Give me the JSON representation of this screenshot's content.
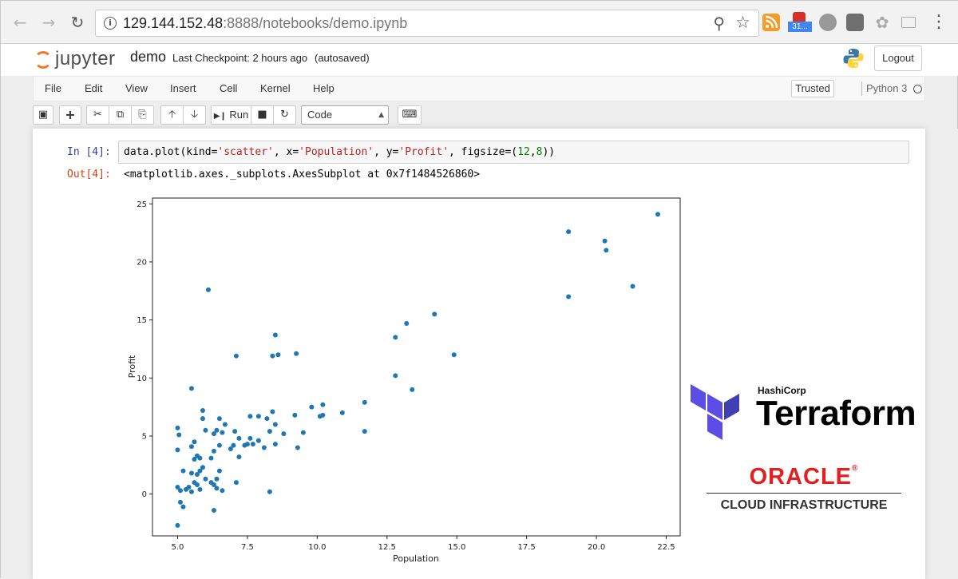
{
  "browser": {
    "url_host": "129.144.152.48",
    "url_rest": ":8888/notebooks/demo.ipynb",
    "extension_badge": "31..."
  },
  "jupyter": {
    "logo_text": "jupyter",
    "notebook_name": "demo",
    "checkpoint": "Last Checkpoint: 2 hours ago",
    "autosave": "(autosaved)",
    "logout_label": "Logout"
  },
  "menu": {
    "items": [
      "File",
      "Edit",
      "View",
      "Insert",
      "Cell",
      "Kernel",
      "Help"
    ],
    "trusted_label": "Trusted",
    "kernel_name": "Python 3"
  },
  "toolbar": {
    "run_label": "Run",
    "cell_type": "Code"
  },
  "cell": {
    "in_prompt": "In [4]:",
    "code_prefix": "data.plot(kind=",
    "code_s1": "'scatter'",
    "code_mid1": ", x=",
    "code_s2": "'Population'",
    "code_mid2": ", y=",
    "code_s3": "'Profit'",
    "code_mid3": ", figsize=(",
    "code_n1": "12",
    "code_comma": ",",
    "code_n2": "8",
    "code_end": "))",
    "out_prompt": "Out[4]:",
    "out_text": "<matplotlib.axes._subplots.AxesSubplot at 0x7f1484526860>"
  },
  "chart_data": {
    "type": "scatter",
    "xlabel": "Population",
    "ylabel": "Profit",
    "xlim": [
      4.1,
      23.0
    ],
    "ylim": [
      -3.6,
      25.5
    ],
    "xticks": [
      5.0,
      7.5,
      10.0,
      12.5,
      15.0,
      17.5,
      20.0,
      22.5
    ],
    "xtick_labels": [
      "5.0",
      "7.5",
      "10.0",
      "12.5",
      "15.0",
      "17.5",
      "20.0",
      "22.5"
    ],
    "yticks": [
      0,
      5,
      10,
      15,
      20,
      25
    ],
    "ytick_labels": [
      "0",
      "5",
      "10",
      "15",
      "20",
      "25"
    ],
    "color": "#1f77b4",
    "points": [
      [
        5.0,
        -2.7
      ],
      [
        5.1,
        -0.7
      ],
      [
        5.2,
        -1.1
      ],
      [
        5.1,
        0.3
      ],
      [
        5.0,
        0.6
      ],
      [
        5.2,
        2.0
      ],
      [
        5.0,
        3.8
      ],
      [
        5.05,
        5.1
      ],
      [
        5.0,
        5.7
      ],
      [
        5.3,
        0.4
      ],
      [
        5.4,
        0.6
      ],
      [
        5.5,
        0.2
      ],
      [
        5.6,
        1.0
      ],
      [
        5.7,
        0.8
      ],
      [
        5.8,
        0.4
      ],
      [
        5.5,
        1.8
      ],
      [
        5.7,
        1.7
      ],
      [
        5.8,
        2.0
      ],
      [
        5.9,
        2.3
      ],
      [
        5.6,
        3.0
      ],
      [
        5.7,
        3.3
      ],
      [
        5.8,
        3.1
      ],
      [
        5.5,
        4.1
      ],
      [
        5.6,
        4.5
      ],
      [
        5.5,
        9.1
      ],
      [
        5.9,
        6.5
      ],
      [
        5.9,
        7.2
      ],
      [
        6.0,
        5.5
      ],
      [
        6.1,
        17.6
      ],
      [
        6.0,
        1.3
      ],
      [
        6.2,
        1.0
      ],
      [
        6.3,
        0.8
      ],
      [
        6.4,
        0.5
      ],
      [
        6.3,
        -1.4
      ],
      [
        6.4,
        1.3
      ],
      [
        6.6,
        0.3
      ],
      [
        6.5,
        2.0
      ],
      [
        6.2,
        3.1
      ],
      [
        6.3,
        3.7
      ],
      [
        6.5,
        4.2
      ],
      [
        6.3,
        5.2
      ],
      [
        6.4,
        5.5
      ],
      [
        6.6,
        5.3
      ],
      [
        6.5,
        6.5
      ],
      [
        6.7,
        6.0
      ],
      [
        6.9,
        3.9
      ],
      [
        7.0,
        4.2
      ],
      [
        7.05,
        5.4
      ],
      [
        7.2,
        4.8
      ],
      [
        7.1,
        1.0
      ],
      [
        7.1,
        11.9
      ],
      [
        7.2,
        3.2
      ],
      [
        7.4,
        4.2
      ],
      [
        7.5,
        4.3
      ],
      [
        7.6,
        4.8
      ],
      [
        7.7,
        4.3
      ],
      [
        7.6,
        6.7
      ],
      [
        7.9,
        6.7
      ],
      [
        7.9,
        4.6
      ],
      [
        8.1,
        4.0
      ],
      [
        8.2,
        6.5
      ],
      [
        8.3,
        5.4
      ],
      [
        8.3,
        0.2
      ],
      [
        8.4,
        7.1
      ],
      [
        8.5,
        6.0
      ],
      [
        8.4,
        11.9
      ],
      [
        8.5,
        13.7
      ],
      [
        8.6,
        12.0
      ],
      [
        8.5,
        4.3
      ],
      [
        8.8,
        5.2
      ],
      [
        9.2,
        6.8
      ],
      [
        9.3,
        4.0
      ],
      [
        9.25,
        12.1
      ],
      [
        9.5,
        5.3
      ],
      [
        9.8,
        7.5
      ],
      [
        10.1,
        6.7
      ],
      [
        10.2,
        6.8
      ],
      [
        10.2,
        7.7
      ],
      [
        10.9,
        7.0
      ],
      [
        11.7,
        7.9
      ],
      [
        11.7,
        5.4
      ],
      [
        12.8,
        13.5
      ],
      [
        12.8,
        10.2
      ],
      [
        13.2,
        14.7
      ],
      [
        13.4,
        9.0
      ],
      [
        14.2,
        15.5
      ],
      [
        14.9,
        12.0
      ],
      [
        19.0,
        22.6
      ],
      [
        19.0,
        17.0
      ],
      [
        20.3,
        21.8
      ],
      [
        20.35,
        21.0
      ],
      [
        21.3,
        17.9
      ],
      [
        22.2,
        24.1
      ]
    ]
  }
}
